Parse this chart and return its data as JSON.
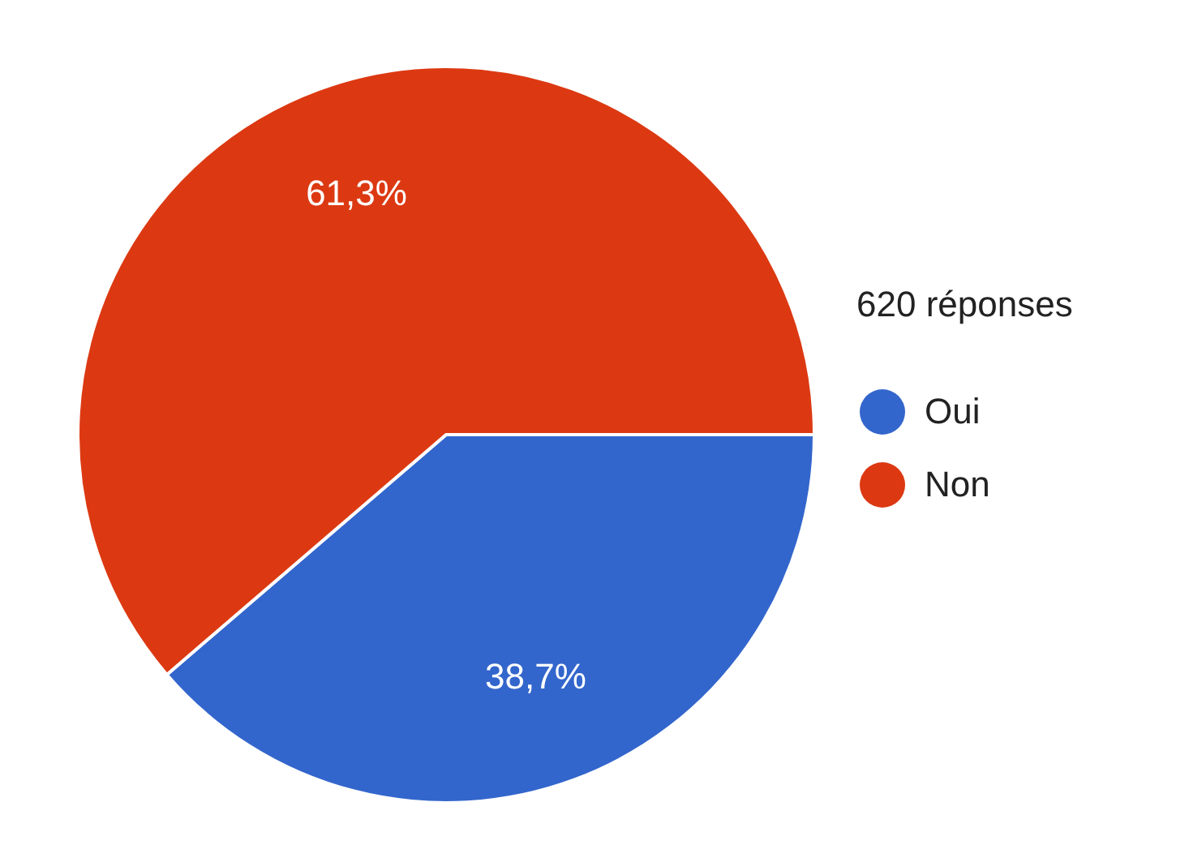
{
  "chart_data": {
    "type": "pie",
    "legend_title": "620 réponses",
    "categories": [
      "Oui",
      "Non"
    ],
    "values": [
      38.7,
      61.3
    ],
    "colors": [
      "#3366cc",
      "#dc3912"
    ],
    "value_labels": [
      "38,7%",
      "61,3%"
    ],
    "legend": "right"
  }
}
